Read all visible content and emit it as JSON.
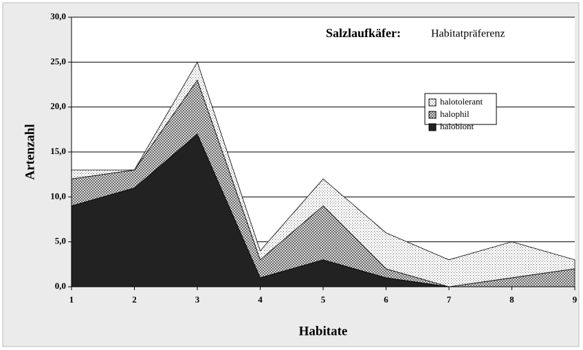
{
  "chart_data": {
    "type": "stacked_area",
    "title": "Salzlaufkäfer:",
    "subtitle": "Habitatpräferenz",
    "x_label": "Habitate",
    "y_label": "Artenzahl",
    "x": [
      1,
      2,
      3,
      4,
      5,
      6,
      7,
      8,
      9
    ],
    "series": [
      {
        "name": "halobiont",
        "color": "#222222",
        "pattern": "solid",
        "values": [
          9,
          11,
          17,
          1,
          3,
          1,
          0,
          0,
          0
        ]
      },
      {
        "name": "halophil",
        "color": "#555555",
        "pattern": "checker",
        "values": [
          3,
          2,
          6,
          2,
          6,
          1,
          0,
          1,
          2
        ]
      },
      {
        "name": "halotolerant",
        "color": "#aaaaaa",
        "pattern": "dots",
        "values": [
          1,
          0,
          2,
          1,
          3,
          4,
          3,
          4,
          1
        ]
      }
    ],
    "xlim": [
      1,
      9
    ],
    "xticks": [
      1,
      2,
      3,
      4,
      5,
      6,
      7,
      8,
      9
    ],
    "ylim": [
      0,
      30
    ],
    "yticks": [
      {
        "value": 0,
        "label": "0,0"
      },
      {
        "value": 5,
        "label": "5,0"
      },
      {
        "value": 10,
        "label": "10,0"
      },
      {
        "value": 15,
        "label": "15,0"
      },
      {
        "value": 20,
        "label": "20,0"
      },
      {
        "value": 25,
        "label": "25,0"
      },
      {
        "value": 30,
        "label": "30,0"
      }
    ],
    "grid": true,
    "legend": "upper right"
  }
}
